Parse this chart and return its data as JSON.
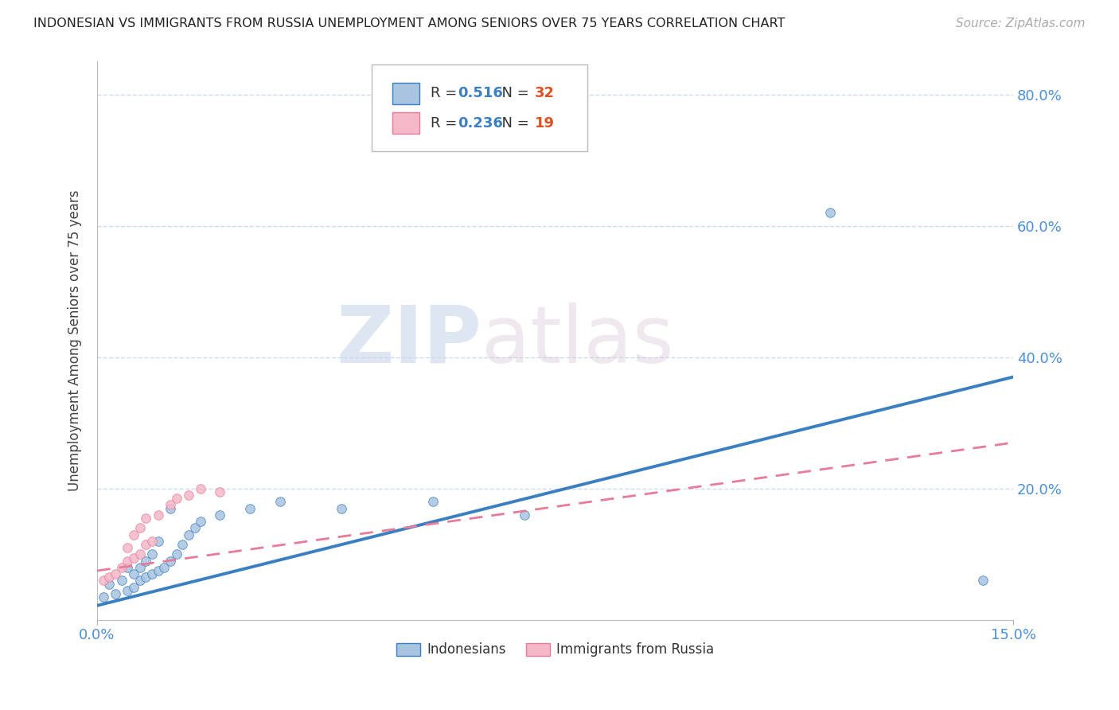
{
  "title": "INDONESIAN VS IMMIGRANTS FROM RUSSIA UNEMPLOYMENT AMONG SENIORS OVER 75 YEARS CORRELATION CHART",
  "source": "Source: ZipAtlas.com",
  "ylabel": "Unemployment Among Seniors over 75 years",
  "xlim": [
    0.0,
    0.15
  ],
  "ylim": [
    0.0,
    0.85
  ],
  "yticks": [
    0.0,
    0.2,
    0.4,
    0.6,
    0.8
  ],
  "xticks": [
    0.0,
    0.15
  ],
  "xtick_labels": [
    "0.0%",
    "15.0%"
  ],
  "ytick_labels_right": [
    "",
    "20.0%",
    "40.0%",
    "60.0%",
    "80.0%"
  ],
  "indonesian_R": 0.516,
  "indonesian_N": 32,
  "russia_R": 0.236,
  "russia_N": 19,
  "indonesian_color": "#a8c4e0",
  "russia_color": "#f4b8c8",
  "indonesian_line_color": "#3a7fc1",
  "russia_line_color": "#e87a9a",
  "indonesian_scatter": [
    [
      0.001,
      0.035
    ],
    [
      0.002,
      0.055
    ],
    [
      0.003,
      0.04
    ],
    [
      0.004,
      0.06
    ],
    [
      0.005,
      0.045
    ],
    [
      0.005,
      0.08
    ],
    [
      0.006,
      0.05
    ],
    [
      0.006,
      0.07
    ],
    [
      0.007,
      0.06
    ],
    [
      0.007,
      0.08
    ],
    [
      0.008,
      0.065
    ],
    [
      0.008,
      0.09
    ],
    [
      0.009,
      0.07
    ],
    [
      0.009,
      0.1
    ],
    [
      0.01,
      0.075
    ],
    [
      0.01,
      0.12
    ],
    [
      0.011,
      0.08
    ],
    [
      0.012,
      0.09
    ],
    [
      0.012,
      0.17
    ],
    [
      0.013,
      0.1
    ],
    [
      0.014,
      0.115
    ],
    [
      0.015,
      0.13
    ],
    [
      0.016,
      0.14
    ],
    [
      0.017,
      0.15
    ],
    [
      0.02,
      0.16
    ],
    [
      0.025,
      0.17
    ],
    [
      0.03,
      0.18
    ],
    [
      0.04,
      0.17
    ],
    [
      0.055,
      0.18
    ],
    [
      0.07,
      0.16
    ],
    [
      0.12,
      0.62
    ],
    [
      0.145,
      0.06
    ]
  ],
  "russia_scatter": [
    [
      0.001,
      0.06
    ],
    [
      0.002,
      0.065
    ],
    [
      0.003,
      0.07
    ],
    [
      0.004,
      0.08
    ],
    [
      0.005,
      0.09
    ],
    [
      0.005,
      0.11
    ],
    [
      0.006,
      0.095
    ],
    [
      0.006,
      0.13
    ],
    [
      0.007,
      0.1
    ],
    [
      0.007,
      0.14
    ],
    [
      0.008,
      0.115
    ],
    [
      0.008,
      0.155
    ],
    [
      0.009,
      0.12
    ],
    [
      0.01,
      0.16
    ],
    [
      0.012,
      0.175
    ],
    [
      0.013,
      0.185
    ],
    [
      0.015,
      0.19
    ],
    [
      0.017,
      0.2
    ],
    [
      0.02,
      0.195
    ]
  ],
  "watermark_zip": "ZIP",
  "watermark_atlas": "atlas",
  "background_color": "#ffffff",
  "grid_color": "#c8d8e8"
}
